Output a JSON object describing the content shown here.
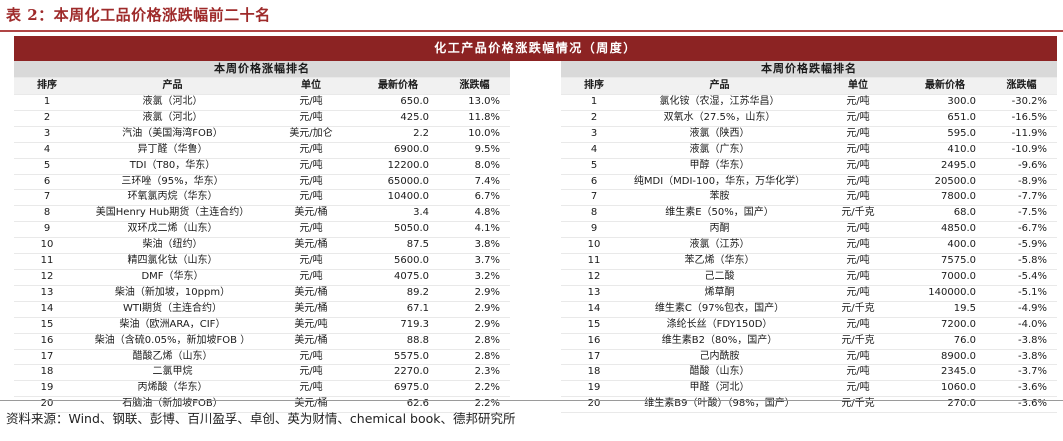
{
  "caption": "表 2：本周化工品价格涨跌幅前二十名",
  "table_title": "化工产品价格涨跌幅情况（周度）",
  "source": "资料来源：Wind、钢联、彭博、百川盈孚、卓创、英为财情、chemical book、德邦研究所",
  "left": {
    "heading": "本周价格涨幅排名",
    "columns": [
      "排序",
      "产品",
      "单位",
      "最新价格",
      "涨跌幅"
    ],
    "rows": [
      [
        "1",
        "液氯（河北）",
        "元/吨",
        "650.0",
        "13.0%"
      ],
      [
        "2",
        "液氯（河北）",
        "元/吨",
        "425.0",
        "11.8%"
      ],
      [
        "3",
        "汽油（美国海湾FOB）",
        "美元/加仑",
        "2.2",
        "10.0%"
      ],
      [
        "4",
        "异丁醛（华鲁）",
        "元/吨",
        "6900.0",
        "9.5%"
      ],
      [
        "5",
        "TDI（T80，华东）",
        "元/吨",
        "12200.0",
        "8.0%"
      ],
      [
        "6",
        "三环唑（95%，华东）",
        "元/吨",
        "65000.0",
        "7.4%"
      ],
      [
        "7",
        "环氧氯丙烷（华东）",
        "元/吨",
        "10400.0",
        "6.7%"
      ],
      [
        "8",
        "美国Henry Hub期货（主连合约）",
        "美元/桶",
        "3.4",
        "4.8%"
      ],
      [
        "9",
        "双环戊二烯（山东）",
        "元/吨",
        "5050.0",
        "4.1%"
      ],
      [
        "10",
        "柴油（纽约）",
        "美元/桶",
        "87.5",
        "3.8%"
      ],
      [
        "11",
        "精四氯化钛（山东）",
        "元/吨",
        "5600.0",
        "3.7%"
      ],
      [
        "12",
        "DMF（华东）",
        "元/吨",
        "4075.0",
        "3.2%"
      ],
      [
        "13",
        "柴油（新加坡，10ppm）",
        "美元/桶",
        "89.2",
        "2.9%"
      ],
      [
        "14",
        "WTI期货（主连合约）",
        "美元/桶",
        "67.1",
        "2.9%"
      ],
      [
        "15",
        "柴油（欧洲ARA，CIF）",
        "美元/吨",
        "719.3",
        "2.9%"
      ],
      [
        "16",
        "柴油（含硫0.05%，新加坡FOB ）",
        "美元/桶",
        "88.8",
        "2.8%"
      ],
      [
        "17",
        "醋酸乙烯（山东）",
        "元/吨",
        "5575.0",
        "2.8%"
      ],
      [
        "18",
        "二氯甲烷",
        "元/吨",
        "2270.0",
        "2.3%"
      ],
      [
        "19",
        "丙烯酸（华东）",
        "元/吨",
        "6975.0",
        "2.2%"
      ],
      [
        "20",
        "石脑油（新加坡FOB）",
        "美元/桶",
        "62.6",
        "2.2%"
      ]
    ]
  },
  "right": {
    "heading": "本周价格跌幅排名",
    "columns": [
      "排序",
      "产品",
      "单位",
      "最新价格",
      "涨跌幅"
    ],
    "rows": [
      [
        "1",
        "氯化铵（农湿，江苏华昌）",
        "元/吨",
        "300.0",
        "-30.2%"
      ],
      [
        "2",
        "双氧水（27.5%，山东）",
        "元/吨",
        "651.0",
        "-16.5%"
      ],
      [
        "3",
        "液氯（陕西）",
        "元/吨",
        "595.0",
        "-11.9%"
      ],
      [
        "4",
        "液氯（广东）",
        "元/吨",
        "410.0",
        "-10.9%"
      ],
      [
        "5",
        "甲醇（华东）",
        "元/吨",
        "2495.0",
        "-9.6%"
      ],
      [
        "6",
        "纯MDI（MDI-100，华东，万华化学）",
        "元/吨",
        "20500.0",
        "-8.9%"
      ],
      [
        "7",
        "苯胺",
        "元/吨",
        "7800.0",
        "-7.7%"
      ],
      [
        "8",
        "维生素E（50%，国产）",
        "元/千克",
        "68.0",
        "-7.5%"
      ],
      [
        "9",
        "丙酮",
        "元/吨",
        "4850.0",
        "-6.7%"
      ],
      [
        "10",
        "液氯（江苏）",
        "元/吨",
        "400.0",
        "-5.9%"
      ],
      [
        "11",
        "苯乙烯（华东）",
        "元/吨",
        "7575.0",
        "-5.8%"
      ],
      [
        "12",
        "己二酸",
        "元/吨",
        "7000.0",
        "-5.4%"
      ],
      [
        "13",
        "烯草酮",
        "元/吨",
        "140000.0",
        "-5.1%"
      ],
      [
        "14",
        "维生素C（97%包衣，国产）",
        "元/千克",
        "19.5",
        "-4.9%"
      ],
      [
        "15",
        "涤纶长丝（FDY150D）",
        "元/吨",
        "7200.0",
        "-4.0%"
      ],
      [
        "16",
        "维生素B2（80%，国产）",
        "元/千克",
        "76.0",
        "-3.8%"
      ],
      [
        "17",
        "己内酰胺",
        "元/吨",
        "8900.0",
        "-3.8%"
      ],
      [
        "18",
        "醋酸（山东）",
        "元/吨",
        "2345.0",
        "-3.7%"
      ],
      [
        "19",
        "甲醛（河北）",
        "元/吨",
        "1060.0",
        "-3.6%"
      ],
      [
        "20",
        "维生素B9（叶酸）（98%，国产）",
        "元/千克",
        "270.0",
        "-3.6%"
      ]
    ]
  }
}
